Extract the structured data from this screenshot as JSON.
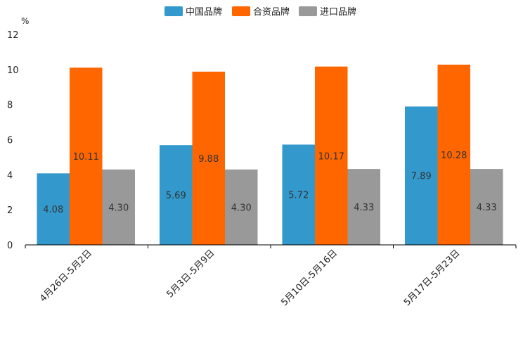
{
  "chart_data": {
    "type": "bar",
    "title": "",
    "ylabel": "%",
    "xlabel": "",
    "ylim": [
      0,
      12
    ],
    "yticks": [
      0,
      2,
      4,
      6,
      8,
      10,
      12
    ],
    "grid": false,
    "legend_position": "top-center",
    "categories": [
      "4月26日-5月2日",
      "5月3日-5月9日",
      "5月10日-5月16日",
      "5月17日-5月23日"
    ],
    "series": [
      {
        "name": "中国品牌",
        "color": "#3399CC",
        "values": [
          4.08,
          5.69,
          5.72,
          7.89
        ],
        "labels": [
          "4.08",
          "5.69",
          "5.72",
          "7.89"
        ]
      },
      {
        "name": "合资品牌",
        "color": "#FF6600",
        "values": [
          10.11,
          9.88,
          10.17,
          10.28
        ],
        "labels": [
          "10.11",
          "9.88",
          "10.17",
          "10.28"
        ]
      },
      {
        "name": "进口品牌",
        "color": "#999999",
        "values": [
          4.3,
          4.3,
          4.33,
          4.33
        ],
        "labels": [
          "4.30",
          "4.30",
          "4.33",
          "4.33"
        ]
      }
    ]
  }
}
